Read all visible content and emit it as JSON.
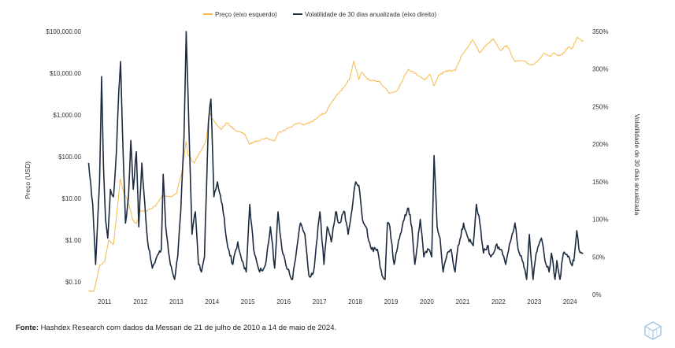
{
  "legend": {
    "price": "Preço (eixo esquerdo)",
    "vol": "Volatilidade de 30 dias anualizada (eixo direito)"
  },
  "source": {
    "label": "Fonte:",
    "text": " Hashdex Research com dados da Messari de 21 de julho de 2010 a 14 de maio de 2024."
  },
  "chart_data": {
    "type": "line",
    "legend_position": "top-center",
    "grid": false,
    "x_ticks": [
      "2011",
      "2012",
      "2013",
      "2014",
      "2015",
      "2016",
      "2017",
      "2018",
      "2019",
      "2020",
      "2021",
      "2022",
      "2023",
      "2024"
    ],
    "y_left": {
      "label": "Preço (USD)",
      "scale": "log",
      "range": [
        0.05,
        100000
      ],
      "ticks": [
        0.1,
        1,
        10,
        100,
        1000,
        10000,
        100000
      ],
      "tick_labels": [
        "$0.10",
        "$1.00",
        "$10.00",
        "$100.00",
        "$1,000.00",
        "$10,000.00",
        "$100,000.00"
      ]
    },
    "y_right": {
      "label": "Volatilidade de 30 dias anualizada",
      "range": [
        0,
        350
      ],
      "ticks": [
        0,
        50,
        100,
        150,
        200,
        250,
        300,
        350
      ],
      "tick_labels": [
        "0%",
        "50%",
        "100%",
        "150%",
        "200%",
        "250%",
        "300%",
        "350%"
      ]
    },
    "series": [
      {
        "name": "Preço (eixo esquerdo)",
        "axis": "left",
        "color": "#f5b84a",
        "points": [
          [
            "2010-07-21",
            0.06
          ],
          [
            "2010-09-15",
            0.06
          ],
          [
            "2010-11-10",
            0.25
          ],
          [
            "2010-12-31",
            0.3
          ],
          [
            "2011-02-10",
            1.0
          ],
          [
            "2011-04-01",
            0.8
          ],
          [
            "2011-05-01",
            3.5
          ],
          [
            "2011-06-08",
            29
          ],
          [
            "2011-07-15",
            14
          ],
          [
            "2011-09-01",
            8
          ],
          [
            "2011-10-15",
            3
          ],
          [
            "2011-11-20",
            2.5
          ],
          [
            "2012-01-01",
            5
          ],
          [
            "2012-03-01",
            5
          ],
          [
            "2012-06-01",
            6.5
          ],
          [
            "2012-08-15",
            12
          ],
          [
            "2012-11-01",
            11
          ],
          [
            "2013-01-01",
            13
          ],
          [
            "2013-03-01",
            45
          ],
          [
            "2013-04-10",
            230
          ],
          [
            "2013-05-01",
            110
          ],
          [
            "2013-07-01",
            70
          ],
          [
            "2013-09-01",
            130
          ],
          [
            "2013-11-01",
            250
          ],
          [
            "2013-12-04",
            1150
          ],
          [
            "2014-01-01",
            800
          ],
          [
            "2014-02-15",
            600
          ],
          [
            "2014-04-01",
            450
          ],
          [
            "2014-06-01",
            650
          ],
          [
            "2014-09-01",
            420
          ],
          [
            "2014-12-01",
            350
          ],
          [
            "2015-01-15",
            200
          ],
          [
            "2015-04-01",
            240
          ],
          [
            "2015-07-01",
            280
          ],
          [
            "2015-10-01",
            240
          ],
          [
            "2015-11-10",
            380
          ],
          [
            "2016-01-01",
            430
          ],
          [
            "2016-06-01",
            650
          ],
          [
            "2016-08-01",
            580
          ],
          [
            "2016-11-01",
            720
          ],
          [
            "2017-01-01",
            1000
          ],
          [
            "2017-03-01",
            1100
          ],
          [
            "2017-06-01",
            2500
          ],
          [
            "2017-09-01",
            4500
          ],
          [
            "2017-11-01",
            7000
          ],
          [
            "2017-12-17",
            19500
          ],
          [
            "2018-02-06",
            7000
          ],
          [
            "2018-03-01",
            10500
          ],
          [
            "2018-06-01",
            6500
          ],
          [
            "2018-09-01",
            6500
          ],
          [
            "2018-11-25",
            3800
          ],
          [
            "2018-12-15",
            3300
          ],
          [
            "2019-03-01",
            3800
          ],
          [
            "2019-06-26",
            12500
          ],
          [
            "2019-09-01",
            10000
          ],
          [
            "2019-12-15",
            7000
          ],
          [
            "2020-02-01",
            9500
          ],
          [
            "2020-03-13",
            5000
          ],
          [
            "2020-05-01",
            9000
          ],
          [
            "2020-08-01",
            11500
          ],
          [
            "2020-10-15",
            11500
          ],
          [
            "2020-12-31",
            29000
          ],
          [
            "2021-04-14",
            63000
          ],
          [
            "2021-06-22",
            31000
          ],
          [
            "2021-09-01",
            48000
          ],
          [
            "2021-11-10",
            67000
          ],
          [
            "2022-01-22",
            35000
          ],
          [
            "2022-03-28",
            47000
          ],
          [
            "2022-06-18",
            19000
          ],
          [
            "2022-09-01",
            20000
          ],
          [
            "2022-11-21",
            16000
          ],
          [
            "2023-01-01",
            16500
          ],
          [
            "2023-04-15",
            30000
          ],
          [
            "2023-06-15",
            25000
          ],
          [
            "2023-07-15",
            30000
          ],
          [
            "2023-09-01",
            26000
          ],
          [
            "2023-10-15",
            28000
          ],
          [
            "2023-12-15",
            43000
          ],
          [
            "2024-01-23",
            39000
          ],
          [
            "2024-03-14",
            73000
          ],
          [
            "2024-05-01",
            58000
          ],
          [
            "2024-05-14",
            62000
          ]
        ]
      },
      {
        "name": "Volatilidade de 30 dias anualizada (eixo direito)",
        "axis": "right",
        "color": "#1c2b40",
        "points": [
          [
            "2010-07-21",
            175
          ],
          [
            "2010-09-01",
            120
          ],
          [
            "2010-10-01",
            40
          ],
          [
            "2010-11-10",
            150
          ],
          [
            "2010-12-01",
            290
          ],
          [
            "2010-12-20",
            170
          ],
          [
            "2011-01-10",
            100
          ],
          [
            "2011-02-01",
            75
          ],
          [
            "2011-03-01",
            140
          ],
          [
            "2011-04-01",
            130
          ],
          [
            "2011-05-01",
            190
          ],
          [
            "2011-05-25",
            270
          ],
          [
            "2011-06-12",
            310
          ],
          [
            "2011-07-01",
            220
          ],
          [
            "2011-08-01",
            95
          ],
          [
            "2011-09-01",
            130
          ],
          [
            "2011-09-25",
            205
          ],
          [
            "2011-10-20",
            140
          ],
          [
            "2011-11-20",
            190
          ],
          [
            "2011-12-15",
            90
          ],
          [
            "2012-01-15",
            175
          ],
          [
            "2012-02-15",
            120
          ],
          [
            "2012-03-15",
            70
          ],
          [
            "2012-05-01",
            35
          ],
          [
            "2012-06-15",
            50
          ],
          [
            "2012-08-01",
            60
          ],
          [
            "2012-08-20",
            160
          ],
          [
            "2012-09-15",
            90
          ],
          [
            "2012-11-01",
            40
          ],
          [
            "2012-12-15",
            20
          ],
          [
            "2013-01-15",
            50
          ],
          [
            "2013-02-15",
            110
          ],
          [
            "2013-03-20",
            210
          ],
          [
            "2013-04-12",
            350
          ],
          [
            "2013-05-10",
            220
          ],
          [
            "2013-06-10",
            80
          ],
          [
            "2013-07-15",
            110
          ],
          [
            "2013-08-15",
            40
          ],
          [
            "2013-09-15",
            30
          ],
          [
            "2013-10-15",
            50
          ],
          [
            "2013-11-25",
            230
          ],
          [
            "2013-12-20",
            260
          ],
          [
            "2014-01-20",
            130
          ],
          [
            "2014-02-25",
            150
          ],
          [
            "2014-04-15",
            120
          ],
          [
            "2014-06-01",
            70
          ],
          [
            "2014-08-01",
            40
          ],
          [
            "2014-09-20",
            70
          ],
          [
            "2014-11-01",
            45
          ],
          [
            "2014-12-15",
            30
          ],
          [
            "2015-01-20",
            120
          ],
          [
            "2015-03-01",
            60
          ],
          [
            "2015-05-01",
            30
          ],
          [
            "2015-07-01",
            40
          ],
          [
            "2015-08-20",
            90
          ],
          [
            "2015-10-01",
            35
          ],
          [
            "2015-11-05",
            110
          ],
          [
            "2015-12-15",
            60
          ],
          [
            "2016-02-01",
            35
          ],
          [
            "2016-04-01",
            20
          ],
          [
            "2016-06-20",
            95
          ],
          [
            "2016-08-05",
            80
          ],
          [
            "2016-09-15",
            25
          ],
          [
            "2016-11-01",
            30
          ],
          [
            "2017-01-05",
            110
          ],
          [
            "2017-02-15",
            40
          ],
          [
            "2017-03-20",
            90
          ],
          [
            "2017-05-01",
            70
          ],
          [
            "2017-06-15",
            110
          ],
          [
            "2017-07-20",
            95
          ],
          [
            "2017-09-15",
            110
          ],
          [
            "2017-10-20",
            80
          ],
          [
            "2017-12-10",
            125
          ],
          [
            "2018-01-05",
            150
          ],
          [
            "2018-02-06",
            145
          ],
          [
            "2018-03-15",
            100
          ],
          [
            "2018-04-20",
            90
          ],
          [
            "2018-06-15",
            60
          ],
          [
            "2018-08-15",
            60
          ],
          [
            "2018-10-01",
            25
          ],
          [
            "2018-11-01",
            20
          ],
          [
            "2018-11-25",
            95
          ],
          [
            "2018-12-20",
            90
          ],
          [
            "2019-02-01",
            40
          ],
          [
            "2019-04-05",
            80
          ],
          [
            "2019-05-15",
            100
          ],
          [
            "2019-06-28",
            115
          ],
          [
            "2019-08-01",
            90
          ],
          [
            "2019-09-01",
            40
          ],
          [
            "2019-10-26",
            100
          ],
          [
            "2019-12-01",
            50
          ],
          [
            "2020-01-20",
            60
          ],
          [
            "2020-02-20",
            50
          ],
          [
            "2020-03-15",
            185
          ],
          [
            "2020-04-15",
            90
          ],
          [
            "2020-05-15",
            75
          ],
          [
            "2020-06-15",
            30
          ],
          [
            "2020-07-28",
            55
          ],
          [
            "2020-09-05",
            60
          ],
          [
            "2020-10-15",
            30
          ],
          [
            "2020-11-15",
            65
          ],
          [
            "2021-01-10",
            95
          ],
          [
            "2021-02-25",
            75
          ],
          [
            "2021-04-18",
            65
          ],
          [
            "2021-05-20",
            120
          ],
          [
            "2021-06-25",
            95
          ],
          [
            "2021-08-01",
            55
          ],
          [
            "2021-09-10",
            65
          ],
          [
            "2021-10-15",
            50
          ],
          [
            "2021-12-05",
            65
          ],
          [
            "2022-01-25",
            60
          ],
          [
            "2022-03-15",
            40
          ],
          [
            "2022-05-12",
            75
          ],
          [
            "2022-06-18",
            95
          ],
          [
            "2022-07-20",
            60
          ],
          [
            "2022-09-01",
            45
          ],
          [
            "2022-10-15",
            20
          ],
          [
            "2022-11-12",
            80
          ],
          [
            "2022-12-20",
            20
          ],
          [
            "2023-01-20",
            55
          ],
          [
            "2023-03-15",
            75
          ],
          [
            "2023-04-20",
            45
          ],
          [
            "2023-06-01",
            30
          ],
          [
            "2023-06-25",
            55
          ],
          [
            "2023-08-01",
            20
          ],
          [
            "2023-08-20",
            45
          ],
          [
            "2023-09-20",
            20
          ],
          [
            "2023-10-25",
            55
          ],
          [
            "2023-12-10",
            50
          ],
          [
            "2024-01-15",
            40
          ],
          [
            "2024-02-10",
            45
          ],
          [
            "2024-03-10",
            85
          ],
          [
            "2024-04-01",
            60
          ],
          [
            "2024-05-14",
            55
          ]
        ]
      }
    ]
  }
}
